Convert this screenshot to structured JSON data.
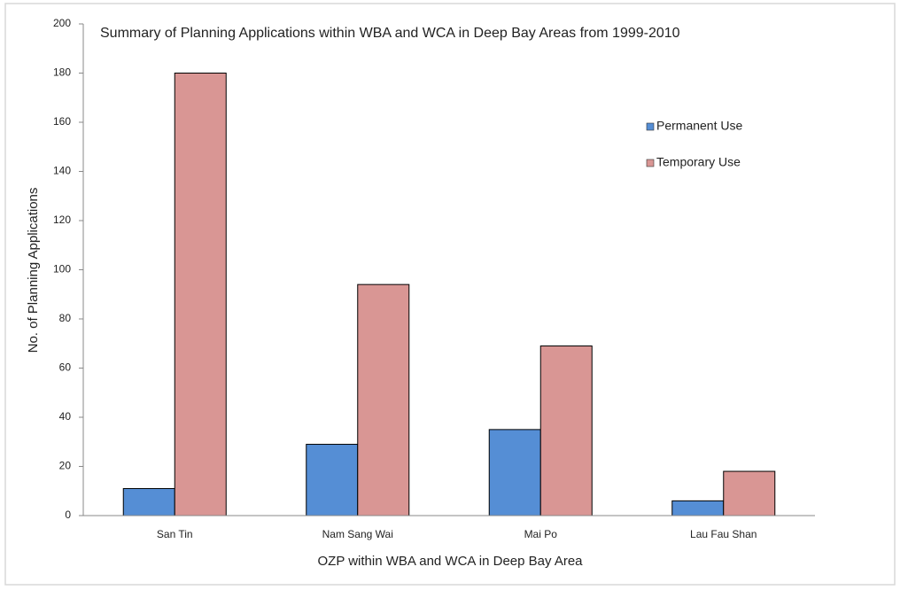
{
  "chart_data": {
    "type": "bar",
    "title": "Summary of Planning Applications within WBA and WCA in Deep Bay Areas from 1999-2010",
    "x_label": "OZP within WBA and WCA in Deep Bay Area",
    "y_label": "No. of Planning Applications",
    "categories": [
      "San Tin",
      "Nam Sang Wai",
      "Mai Po",
      "Lau Fau Shan"
    ],
    "series": [
      {
        "name": "Permanent Use",
        "color": "#558ed5",
        "values": [
          11,
          29,
          35,
          6
        ]
      },
      {
        "name": "Temporary Use",
        "color": "#d99694",
        "values": [
          180,
          94,
          69,
          18
        ]
      }
    ],
    "ylim": [
      0,
      200
    ],
    "yticks": [
      0,
      20,
      40,
      60,
      80,
      100,
      120,
      140,
      160,
      180,
      200
    ]
  }
}
